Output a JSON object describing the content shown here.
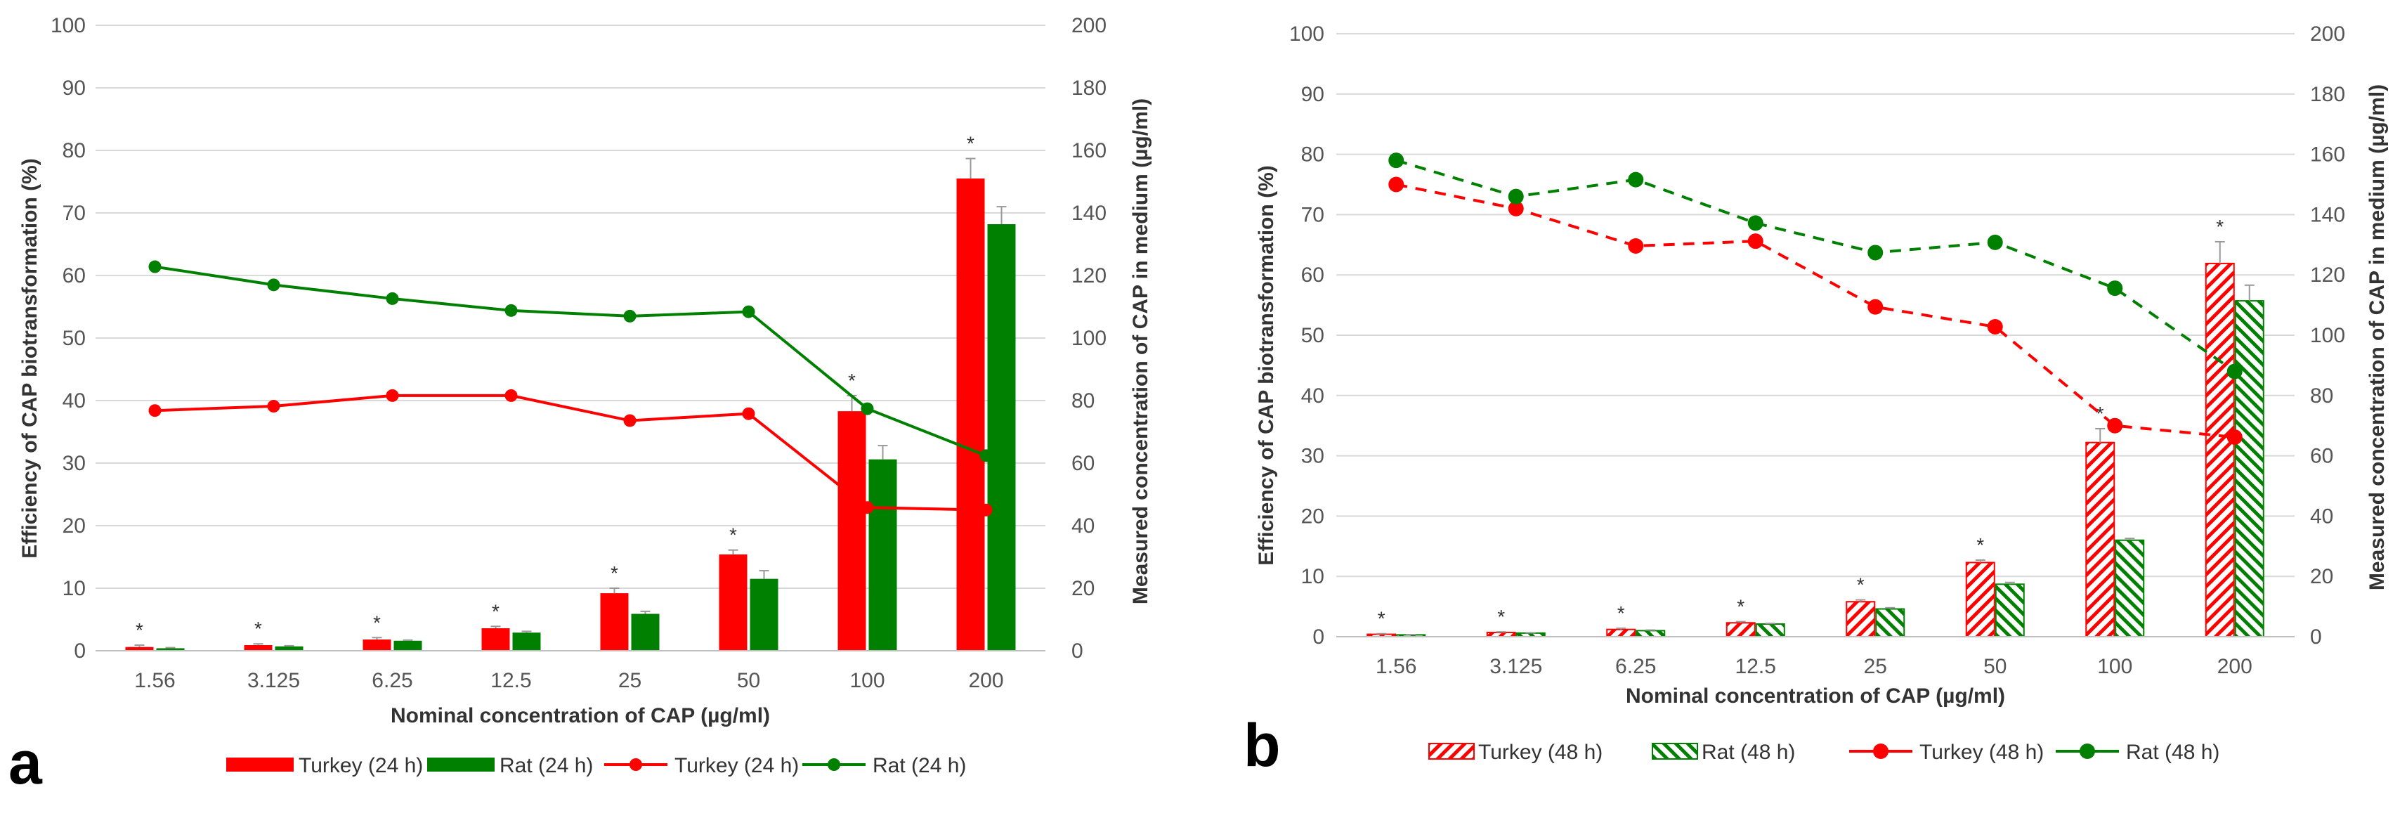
{
  "colors": {
    "turkey": "#ff0000",
    "rat": "#008000",
    "grid": "#d9d9d9",
    "axis": "#bfbfbf",
    "error": "#999999"
  },
  "chart_data": [
    {
      "type": "bar",
      "panel_label": "a",
      "categories": [
        "1.56",
        "3.125",
        "6.25",
        "12.5",
        "25",
        "50",
        "100",
        "200"
      ],
      "xlabel": "Nominal concentration of CAP (µg/ml)",
      "ylabel": "Efficiency of CAP biotransformation (%)",
      "y2label": "Measured concentration of CAP in medium (µg/ml)",
      "ylim": [
        0,
        100
      ],
      "yticks": [
        "0",
        "10",
        "20",
        "30",
        "40",
        "50",
        "60",
        "70",
        "80",
        "90",
        "100"
      ],
      "y2lim": [
        0,
        200
      ],
      "y2ticks": [
        "0",
        "20",
        "40",
        "60",
        "80",
        "100",
        "120",
        "140",
        "160",
        "180",
        "200"
      ],
      "grid": true,
      "legend_position": "bottom",
      "series": [
        {
          "name": "Turkey (24 h)",
          "kind": "bar",
          "pattern": "solid",
          "color": "turkey",
          "axis": "left",
          "values": [
            0.6,
            0.9,
            1.8,
            3.6,
            9.2,
            15.4,
            38.3,
            75.5
          ],
          "errors": [
            0.3,
            0.2,
            0.3,
            0.3,
            0.8,
            0.7,
            2.5,
            3.2
          ]
        },
        {
          "name": "Rat (24 h)",
          "kind": "bar",
          "pattern": "solid",
          "color": "rat",
          "axis": "left",
          "values": [
            0.4,
            0.7,
            1.6,
            2.9,
            5.9,
            11.5,
            30.6,
            68.2
          ],
          "errors": [
            0.1,
            0.1,
            0.1,
            0.2,
            0.4,
            1.3,
            2.2,
            2.8
          ]
        },
        {
          "name": "Turkey (24 h)",
          "kind": "line",
          "dash": "solid",
          "color": "turkey",
          "axis": "right",
          "values": [
            76.8,
            78.2,
            81.6,
            81.6,
            73.6,
            75.8,
            45.8,
            45.0
          ]
        },
        {
          "name": "Rat (24 h)",
          "kind": "line",
          "dash": "solid",
          "color": "rat",
          "axis": "right",
          "values": [
            122.8,
            117,
            112.6,
            108.8,
            107.0,
            108.4,
            77.4,
            62.4
          ]
        }
      ],
      "significance": {
        "symbol": "*",
        "categories": [
          0,
          1,
          2,
          3,
          4,
          5,
          6,
          7
        ]
      }
    },
    {
      "type": "bar",
      "panel_label": "b",
      "categories": [
        "1.56",
        "3.125",
        "6.25",
        "12.5",
        "25",
        "50",
        "100",
        "200"
      ],
      "xlabel": "Nominal concentration of CAP (µg/ml)",
      "ylabel": "Efficiency of CAP biotransformation (%)",
      "y2label": "Measured concentration of CAP in medium (µg/ml)",
      "ylim": [
        0,
        100
      ],
      "yticks": [
        "0",
        "10",
        "20",
        "30",
        "40",
        "50",
        "60",
        "70",
        "80",
        "90",
        "100"
      ],
      "y2lim": [
        0,
        200
      ],
      "y2ticks": [
        "0",
        "20",
        "40",
        "60",
        "80",
        "100",
        "120",
        "140",
        "160",
        "180",
        "200"
      ],
      "grid": true,
      "legend_position": "bottom",
      "series": [
        {
          "name": "Turkey (48 h)",
          "kind": "bar",
          "pattern": "hatched",
          "color": "turkey",
          "axis": "left",
          "values": [
            0.4,
            0.7,
            1.2,
            2.3,
            5.8,
            12.3,
            32.2,
            61.9
          ],
          "errors": [
            0.1,
            0.1,
            0.2,
            0.2,
            0.3,
            0.4,
            2.3,
            3.6
          ]
        },
        {
          "name": "Rat (48 h)",
          "kind": "bar",
          "pattern": "hatched",
          "color": "rat",
          "axis": "left",
          "values": [
            0.3,
            0.6,
            1.0,
            2.1,
            4.6,
            8.7,
            16.0,
            55.7
          ],
          "errors": [
            0.05,
            0.05,
            0.1,
            0.1,
            0.2,
            0.3,
            0.3,
            2.6
          ]
        },
        {
          "name": "Turkey (48 h)",
          "kind": "line",
          "dash": "dashed",
          "color": "turkey",
          "axis": "right",
          "values": [
            150.0,
            142.0,
            129.6,
            131.2,
            109.4,
            102.8,
            70.0,
            66.2
          ]
        },
        {
          "name": "Rat (48 h)",
          "kind": "line",
          "dash": "dashed",
          "color": "rat",
          "axis": "right",
          "values": [
            158.0,
            146.0,
            151.6,
            137.2,
            127.4,
            130.8,
            115.6,
            88.0
          ]
        }
      ],
      "significance": {
        "symbol": "*",
        "categories": [
          0,
          1,
          2,
          3,
          4,
          5,
          6,
          7
        ]
      }
    }
  ]
}
